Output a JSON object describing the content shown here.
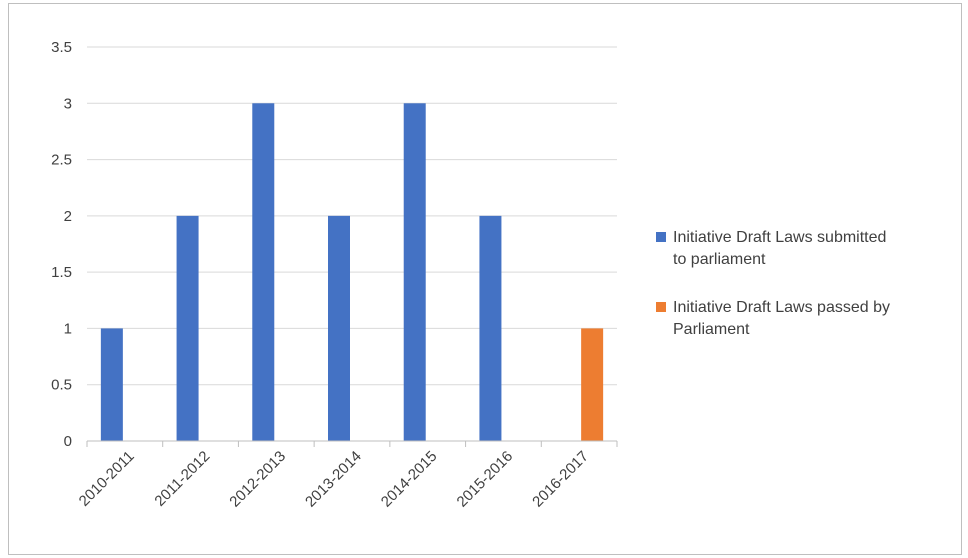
{
  "chart_data": {
    "type": "bar",
    "title": "",
    "xlabel": "",
    "ylabel": "",
    "categories": [
      "2010-2011",
      "2011-2012",
      "2012-2013",
      "2013-2014",
      "2014-2015",
      "2015-2016",
      "2016-2017"
    ],
    "series": [
      {
        "name": "Initiative Draft Laws submitted to parliament",
        "values": [
          1,
          2,
          3,
          2,
          3,
          2,
          0
        ],
        "color": "#4472c4"
      },
      {
        "name": "Initiative Draft Laws passed by Parliament",
        "values": [
          0,
          0,
          0,
          0,
          0,
          0,
          1
        ],
        "color": "#ed7d31"
      }
    ],
    "ylim": [
      0,
      3.5
    ],
    "yticks": [
      "0",
      "0.5",
      "1",
      "1.5",
      "2",
      "2.5",
      "3",
      "3.5"
    ],
    "grid": true,
    "legend_position": "right"
  }
}
